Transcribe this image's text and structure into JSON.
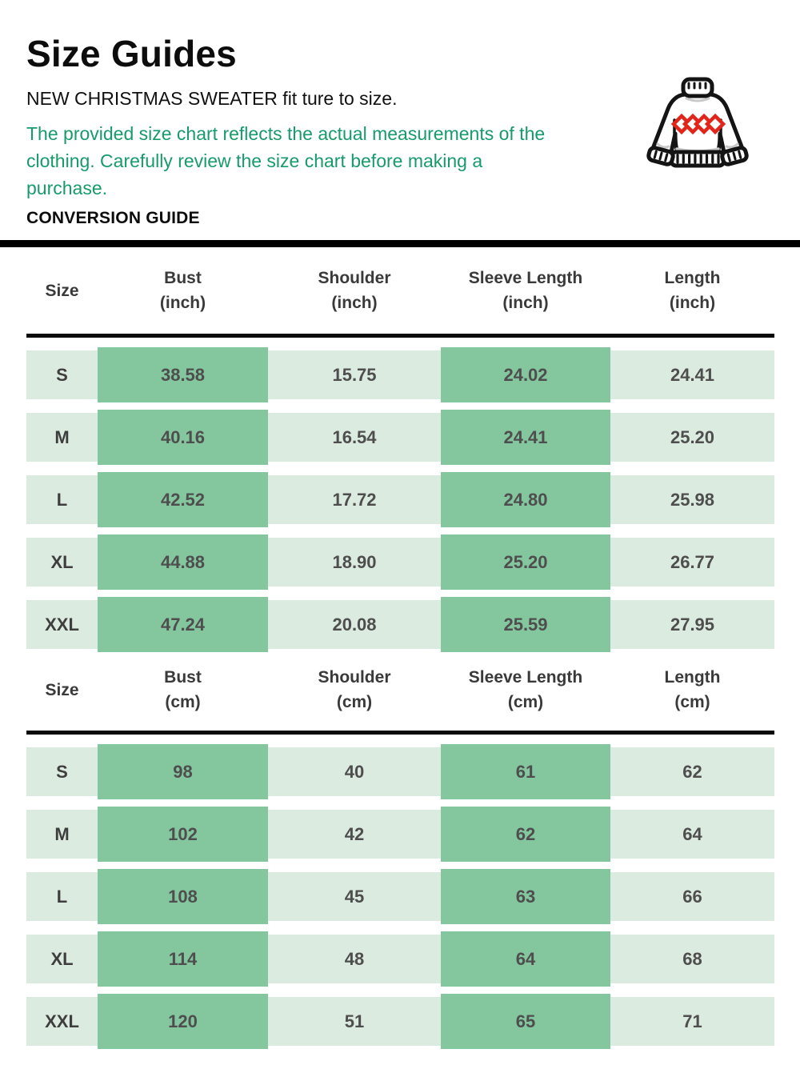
{
  "header": {
    "title": "Size Guides",
    "fit_note": "NEW CHRISTMAS SWEATER fit ture to size.",
    "measurement_note": "The provided size chart reflects the actual measurements of the clothing. Carefully review the size chart before making a purchase.",
    "section_label": "CONVERSION GUIDE"
  },
  "icon": {
    "name": "christmas-sweater-icon",
    "outline_color": "#141414",
    "diamond_color": "#e2251a",
    "shading_color": "#c9c9c9"
  },
  "colors": {
    "accent_green_text": "#179a6c",
    "cell_highlight_green": "#84c79e",
    "cell_light_green": "#dcebe0",
    "divider_black": "#000000",
    "value_text": "#4e4e4e"
  },
  "highlighted_columns": [
    "Bust",
    "Sleeve Length"
  ],
  "highlight_value_indices": [
    0,
    2
  ],
  "tables": [
    {
      "unit": "inch",
      "headers": [
        {
          "label": "Size",
          "unit": ""
        },
        {
          "label": "Bust",
          "unit": "(inch)"
        },
        {
          "label": "Shoulder",
          "unit": "(inch)"
        },
        {
          "label": "Sleeve Length",
          "unit": "(inch)"
        },
        {
          "label": "Length",
          "unit": "(inch)"
        }
      ],
      "rows": [
        {
          "size": "S",
          "values": [
            "38.58",
            "15.75",
            "24.02",
            "24.41"
          ]
        },
        {
          "size": "M",
          "values": [
            "40.16",
            "16.54",
            "24.41",
            "25.20"
          ]
        },
        {
          "size": "L",
          "values": [
            "42.52",
            "17.72",
            "24.80",
            "25.98"
          ]
        },
        {
          "size": "XL",
          "values": [
            "44.88",
            "18.90",
            "25.20",
            "26.77"
          ]
        },
        {
          "size": "XXL",
          "values": [
            "47.24",
            "20.08",
            "25.59",
            "27.95"
          ]
        }
      ]
    },
    {
      "unit": "cm",
      "headers": [
        {
          "label": "Size",
          "unit": ""
        },
        {
          "label": "Bust",
          "unit": "(cm)"
        },
        {
          "label": "Shoulder",
          "unit": "(cm)"
        },
        {
          "label": "Sleeve Length",
          "unit": "(cm)"
        },
        {
          "label": "Length",
          "unit": "(cm)"
        }
      ],
      "rows": [
        {
          "size": "S",
          "values": [
            "98",
            "40",
            "61",
            "62"
          ]
        },
        {
          "size": "M",
          "values": [
            "102",
            "42",
            "62",
            "64"
          ]
        },
        {
          "size": "L",
          "values": [
            "108",
            "45",
            "63",
            "66"
          ]
        },
        {
          "size": "XL",
          "values": [
            "114",
            "48",
            "64",
            "68"
          ]
        },
        {
          "size": "XXL",
          "values": [
            "120",
            "51",
            "65",
            "71"
          ]
        }
      ]
    }
  ]
}
